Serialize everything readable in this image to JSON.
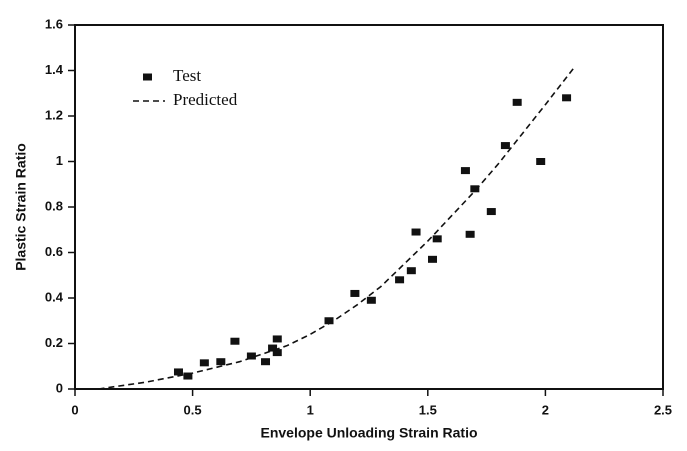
{
  "chart_data": {
    "type": "scatter",
    "xlabel": "Envelope Unloading Strain Ratio",
    "ylabel": "Plastic Strain Ratio",
    "xlim": [
      0,
      2.5
    ],
    "ylim": [
      0,
      1.6
    ],
    "xticks": [
      0,
      0.5,
      1,
      1.5,
      2,
      2.5
    ],
    "yticks": [
      0,
      0.2,
      0.4,
      0.6,
      0.8,
      1,
      1.2,
      1.4,
      1.6
    ],
    "legend": "upper left",
    "series": [
      {
        "name": "Test",
        "type": "scatter",
        "color": "#111111",
        "x": [
          0.44,
          0.48,
          0.55,
          0.62,
          0.68,
          0.75,
          0.81,
          0.84,
          0.86,
          0.86,
          1.08,
          1.19,
          1.26,
          1.38,
          1.43,
          1.45,
          1.52,
          1.54,
          1.66,
          1.68,
          1.7,
          1.77,
          1.83,
          1.88,
          1.98,
          2.09
        ],
        "values": [
          0.075,
          0.057,
          0.115,
          0.12,
          0.21,
          0.145,
          0.12,
          0.18,
          0.22,
          0.16,
          0.3,
          0.42,
          0.39,
          0.48,
          0.52,
          0.69,
          0.57,
          0.66,
          0.96,
          0.68,
          0.88,
          0.78,
          1.07,
          1.26,
          1.0,
          1.28
        ]
      },
      {
        "name": "Predicted",
        "type": "line",
        "color": "#111111",
        "dashed": true,
        "x": [
          0.1,
          0.3,
          0.5,
          0.7,
          0.9,
          1.0,
          1.1,
          1.2,
          1.3,
          1.4,
          1.5,
          1.6,
          1.7,
          1.8,
          1.9,
          2.0,
          2.12
        ],
        "values": [
          0,
          0.03,
          0.07,
          0.12,
          0.19,
          0.24,
          0.3,
          0.37,
          0.45,
          0.55,
          0.65,
          0.76,
          0.87,
          0.99,
          1.12,
          1.25,
          1.41
        ]
      }
    ]
  }
}
